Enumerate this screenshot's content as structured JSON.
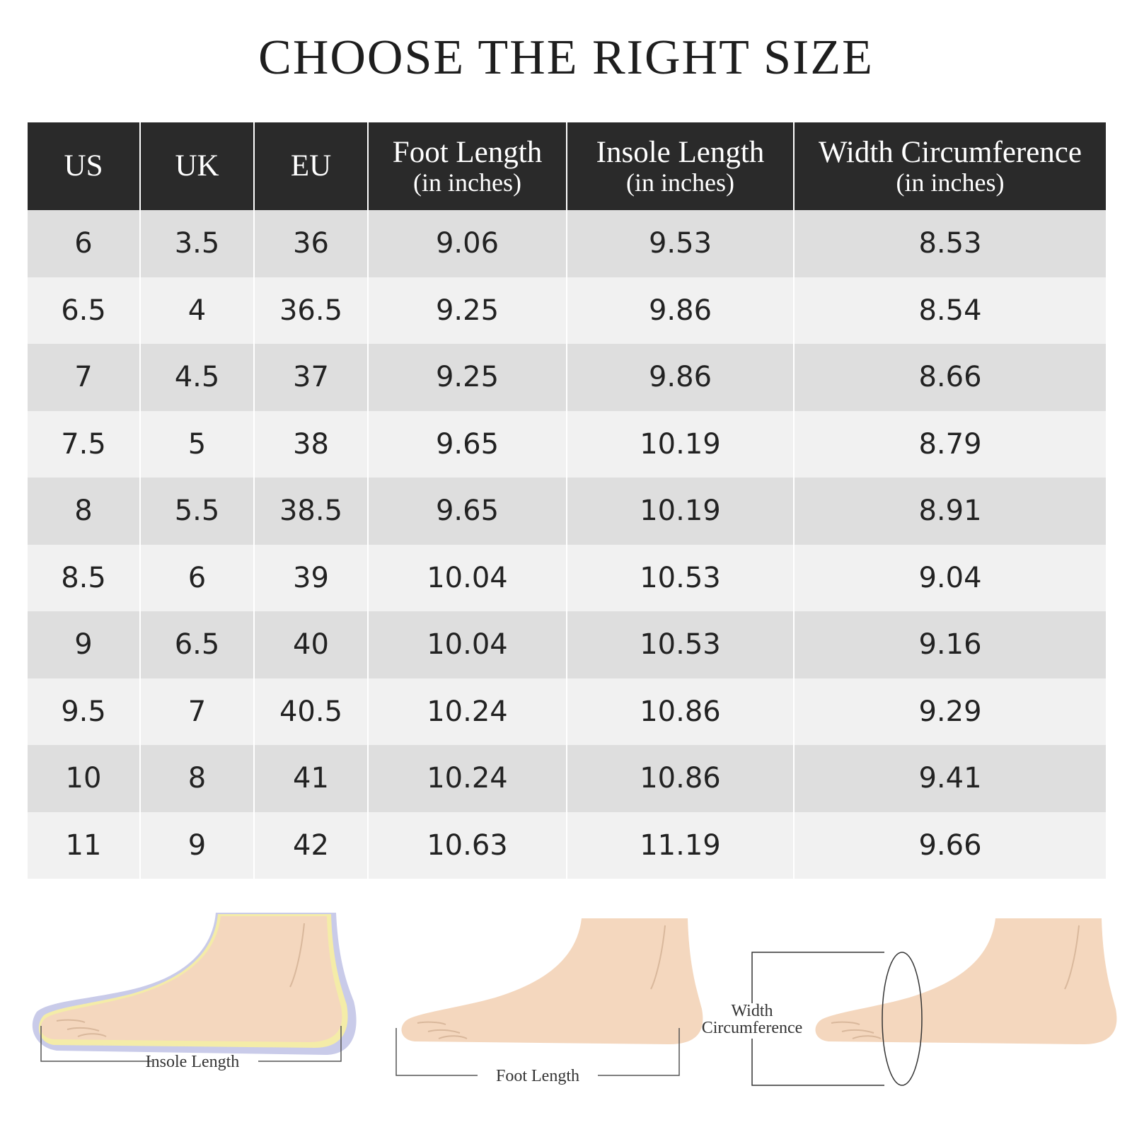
{
  "title": "CHOOSE THE RIGHT SIZE",
  "table": {
    "header": [
      {
        "title": "US"
      },
      {
        "title": "UK"
      },
      {
        "title": "EU"
      },
      {
        "title": "Foot Length",
        "unit": "(in inches)"
      },
      {
        "title": "Insole Length",
        "unit": "(in inches)"
      },
      {
        "title": "Width Circumference",
        "unit": "(in inches)"
      }
    ],
    "rows": [
      [
        "6",
        "3.5",
        "36",
        "9.06",
        "9.53",
        "8.53"
      ],
      [
        "6.5",
        "4",
        "36.5",
        "9.25",
        "9.86",
        "8.54"
      ],
      [
        "7",
        "4.5",
        "37",
        "9.25",
        "9.86",
        "8.66"
      ],
      [
        "7.5",
        "5",
        "38",
        "9.65",
        "10.19",
        "8.79"
      ],
      [
        "8",
        "5.5",
        "38.5",
        "9.65",
        "10.19",
        "8.91"
      ],
      [
        "8.5",
        "6",
        "39",
        "10.04",
        "10.53",
        "9.04"
      ],
      [
        "9",
        "6.5",
        "40",
        "10.04",
        "10.53",
        "9.16"
      ],
      [
        "9.5",
        "7",
        "40.5",
        "10.24",
        "10.86",
        "9.29"
      ],
      [
        "10",
        "8",
        "41",
        "10.24",
        "10.86",
        "9.41"
      ],
      [
        "11",
        "9",
        "42",
        "10.63",
        "11.19",
        "9.66"
      ]
    ]
  },
  "diagrams": [
    {
      "label": "Insole Length"
    },
    {
      "label": "Foot Length"
    },
    {
      "label_lines": [
        "Width",
        "Circumference"
      ]
    }
  ]
}
